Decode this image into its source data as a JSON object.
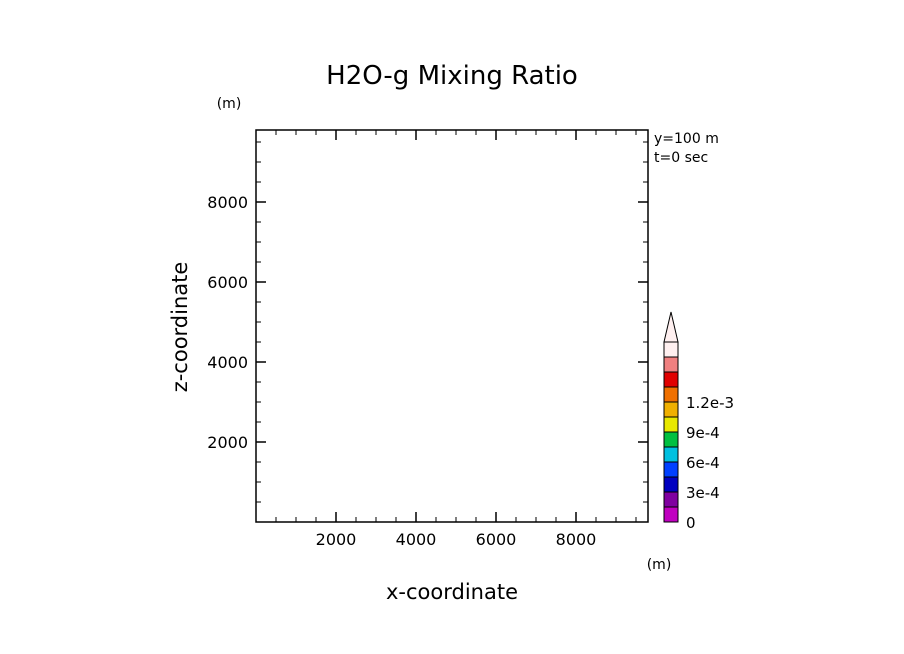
{
  "chart_data": {
    "type": "heatmap",
    "title": "H2O-g Mixing Ratio",
    "xlabel": "x-coordinate",
    "ylabel": "z-coordinate",
    "x_unit": "(m)",
    "y_unit": "(m)",
    "xlim": [
      0,
      9800
    ],
    "ylim": [
      0,
      9800
    ],
    "x_major_ticks": [
      2000,
      4000,
      6000,
      8000
    ],
    "x_tick_labels": [
      "2000",
      "4000",
      "6000",
      "8000"
    ],
    "y_major_ticks": [
      2000,
      4000,
      6000,
      8000
    ],
    "y_tick_labels": [
      "2000",
      "4000",
      "6000",
      "8000"
    ],
    "minor_tick_step": 500,
    "annotations": [
      "y=100 m",
      "t=0 sec"
    ],
    "field": "empty",
    "colorbar": {
      "levels": [
        0,
        0.00015,
        0.0003,
        0.00045,
        0.0006,
        0.00075,
        0.0009,
        0.00105,
        0.0012,
        0.00135
      ],
      "colors": [
        "#c000c0",
        "#8000a0",
        "#0000c0",
        "#0040ff",
        "#00c0e0",
        "#00c040",
        "#e8e800",
        "#f0b000",
        "#f07000",
        "#e00000",
        "#f08080",
        "#fff0f0"
      ],
      "labels": [
        {
          "value": 0,
          "text": "0"
        },
        {
          "value": 0.0003,
          "text": "3e-4"
        },
        {
          "value": 0.0006,
          "text": "6e-4"
        },
        {
          "value": 0.0009,
          "text": "9e-4"
        },
        {
          "value": 0.0012,
          "text": "1.2e-3"
        }
      ],
      "extend": "max"
    }
  }
}
